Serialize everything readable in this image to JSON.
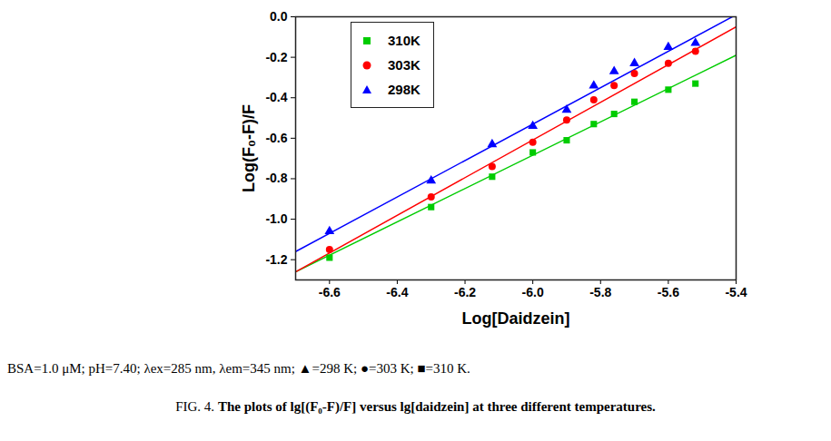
{
  "chart_data": {
    "type": "scatter",
    "x_label": "Log[Daidzein]",
    "y_label": "Log(F₀-F)/F",
    "note": "BSA=1.0 μM; pH=7.40; λex=285 nm, λem=345 nm; ▲=298 K; ●=303 K; ■=310 K.",
    "figure_label": "FIG. 4.",
    "caption": "The plots of lg[(F₀-F)/F] versus lg[daidzein] at three different temperatures.",
    "legend": "top-left",
    "x": [
      -6.6,
      -6.3,
      -6.12,
      -6.0,
      -5.9,
      -5.82,
      -5.76,
      -5.7,
      -5.6,
      -5.52
    ],
    "fit_x": [
      -6.7,
      -5.4
    ],
    "series": [
      {
        "name": "310K",
        "color": "#00cc00",
        "marker": "square",
        "values": [
          -1.19,
          -0.94,
          -0.79,
          -0.67,
          -0.61,
          -0.53,
          -0.48,
          -0.42,
          -0.36,
          -0.33
        ],
        "fit_values": [
          -1.26,
          -0.19
        ]
      },
      {
        "name": "303K",
        "color": "#ff0000",
        "marker": "circle",
        "values": [
          -1.15,
          -0.89,
          -0.74,
          -0.62,
          -0.51,
          -0.41,
          -0.34,
          -0.28,
          -0.23,
          -0.17
        ],
        "fit_values": [
          -1.26,
          -0.05
        ]
      },
      {
        "name": "298K",
        "color": "#0000ff",
        "marker": "triangle",
        "values": [
          -1.06,
          -0.81,
          -0.63,
          -0.54,
          -0.46,
          -0.34,
          -0.27,
          -0.23,
          -0.15,
          -0.13
        ],
        "fit_values": [
          -1.16,
          0.01
        ]
      }
    ],
    "xlim": [
      -6.7,
      -5.4
    ],
    "xticks": [
      -6.6,
      -6.4,
      -6.2,
      {
        "value": -6,
        "label": "-6.0"
      },
      -5.8,
      -5.6,
      -5.4
    ],
    "ylim": [
      -1.3,
      0
    ],
    "yticks": [
      -1.2,
      {
        "value": -1,
        "label": "-1.0"
      },
      -0.8,
      -0.6,
      -0.4,
      -0.2,
      {
        "value": 0,
        "label": "0.0"
      }
    ],
    "grid": false
  }
}
